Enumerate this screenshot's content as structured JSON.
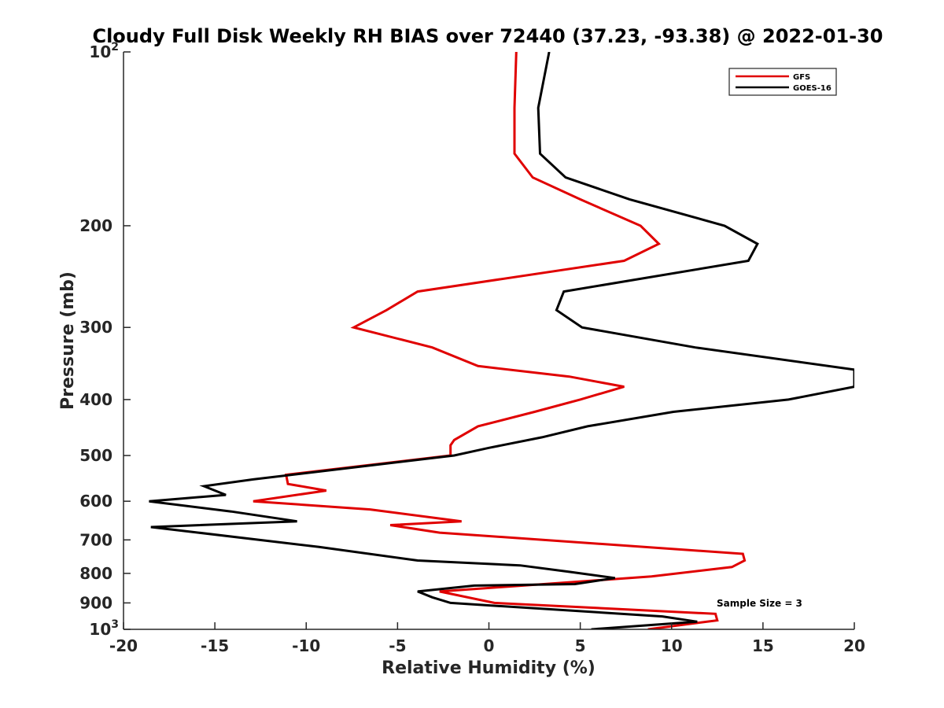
{
  "chart_data": {
    "type": "line",
    "title": "Cloudy Full Disk Weekly RH BIAS over 72440 (37.23, -93.38) @ 2022-01-30",
    "xlabel": "Relative Humidity (%)",
    "ylabel": "Pressure (mb)",
    "xlim": [
      -20,
      20
    ],
    "ylim": [
      1000,
      100
    ],
    "yscale": "log",
    "y_reversed": true,
    "grid": false,
    "legend_position": "top-right",
    "x_ticks": [
      -20,
      -15,
      -10,
      -5,
      0,
      5,
      10,
      15,
      20
    ],
    "y_ticks": [
      {
        "value": 100,
        "label": "10",
        "exp": "2"
      },
      {
        "value": 200,
        "label": "200",
        "exp": ""
      },
      {
        "value": 300,
        "label": "300",
        "exp": ""
      },
      {
        "value": 400,
        "label": "400",
        "exp": ""
      },
      {
        "value": 500,
        "label": "500",
        "exp": ""
      },
      {
        "value": 600,
        "label": "600",
        "exp": ""
      },
      {
        "value": 700,
        "label": "700",
        "exp": ""
      },
      {
        "value": 800,
        "label": "800",
        "exp": ""
      },
      {
        "value": 900,
        "label": "900",
        "exp": ""
      },
      {
        "value": 1000,
        "label": "10",
        "exp": "3"
      }
    ],
    "annotation": "Sample Size = 3",
    "series": [
      {
        "name": "GFS",
        "color": "#e00000",
        "points": [
          [
            1.5,
            100
          ],
          [
            1.4,
            125
          ],
          [
            1.4,
            150
          ],
          [
            2.4,
            165
          ],
          [
            5.0,
            180
          ],
          [
            8.3,
            200
          ],
          [
            9.3,
            215
          ],
          [
            7.4,
            230
          ],
          [
            -3.9,
            260
          ],
          [
            -5.6,
            280
          ],
          [
            -7.4,
            300
          ],
          [
            -3.1,
            325
          ],
          [
            -0.6,
            350
          ],
          [
            4.4,
            365
          ],
          [
            7.4,
            380
          ],
          [
            5.0,
            400
          ],
          [
            2.5,
            420
          ],
          [
            -0.6,
            445
          ],
          [
            -1.9,
            470
          ],
          [
            -2.1,
            480
          ],
          [
            -2.1,
            500
          ],
          [
            -11.1,
            540
          ],
          [
            -11.0,
            560
          ],
          [
            -8.9,
            575
          ],
          [
            -12.9,
            600
          ],
          [
            -6.5,
            620
          ],
          [
            -1.5,
            650
          ],
          [
            -5.4,
            660
          ],
          [
            -2.7,
            680
          ],
          [
            13.9,
            740
          ],
          [
            14.0,
            760
          ],
          [
            13.3,
            780
          ],
          [
            8.9,
            810
          ],
          [
            -2.7,
            860
          ],
          [
            0.3,
            900
          ],
          [
            12.4,
            940
          ],
          [
            12.5,
            965
          ],
          [
            8.7,
            1000
          ]
        ]
      },
      {
        "name": "GOES-16",
        "color": "#000000",
        "points": [
          [
            3.3,
            100
          ],
          [
            2.7,
            125
          ],
          [
            2.8,
            150
          ],
          [
            4.2,
            165
          ],
          [
            7.7,
            180
          ],
          [
            12.9,
            200
          ],
          [
            14.7,
            215
          ],
          [
            14.2,
            230
          ],
          [
            4.1,
            260
          ],
          [
            3.7,
            280
          ],
          [
            5.1,
            300
          ],
          [
            11.3,
            325
          ],
          [
            20.0,
            355
          ],
          [
            20.0,
            380
          ],
          [
            16.4,
            400
          ],
          [
            10.1,
            420
          ],
          [
            5.4,
            445
          ],
          [
            2.9,
            465
          ],
          [
            0.0,
            485
          ],
          [
            -1.9,
            500
          ],
          [
            -12.9,
            550
          ],
          [
            -15.6,
            565
          ],
          [
            -14.4,
            585
          ],
          [
            -18.6,
            600
          ],
          [
            -14.1,
            625
          ],
          [
            -10.5,
            650
          ],
          [
            -18.5,
            665
          ],
          [
            -15.9,
            680
          ],
          [
            -9.3,
            720
          ],
          [
            -3.9,
            760
          ],
          [
            1.7,
            775
          ],
          [
            4.4,
            795
          ],
          [
            6.9,
            815
          ],
          [
            4.7,
            835
          ],
          [
            -0.8,
            840
          ],
          [
            -3.9,
            860
          ],
          [
            -3.1,
            880
          ],
          [
            -2.1,
            900
          ],
          [
            9.5,
            950
          ],
          [
            11.4,
            970
          ],
          [
            5.6,
            1000
          ]
        ]
      }
    ]
  }
}
